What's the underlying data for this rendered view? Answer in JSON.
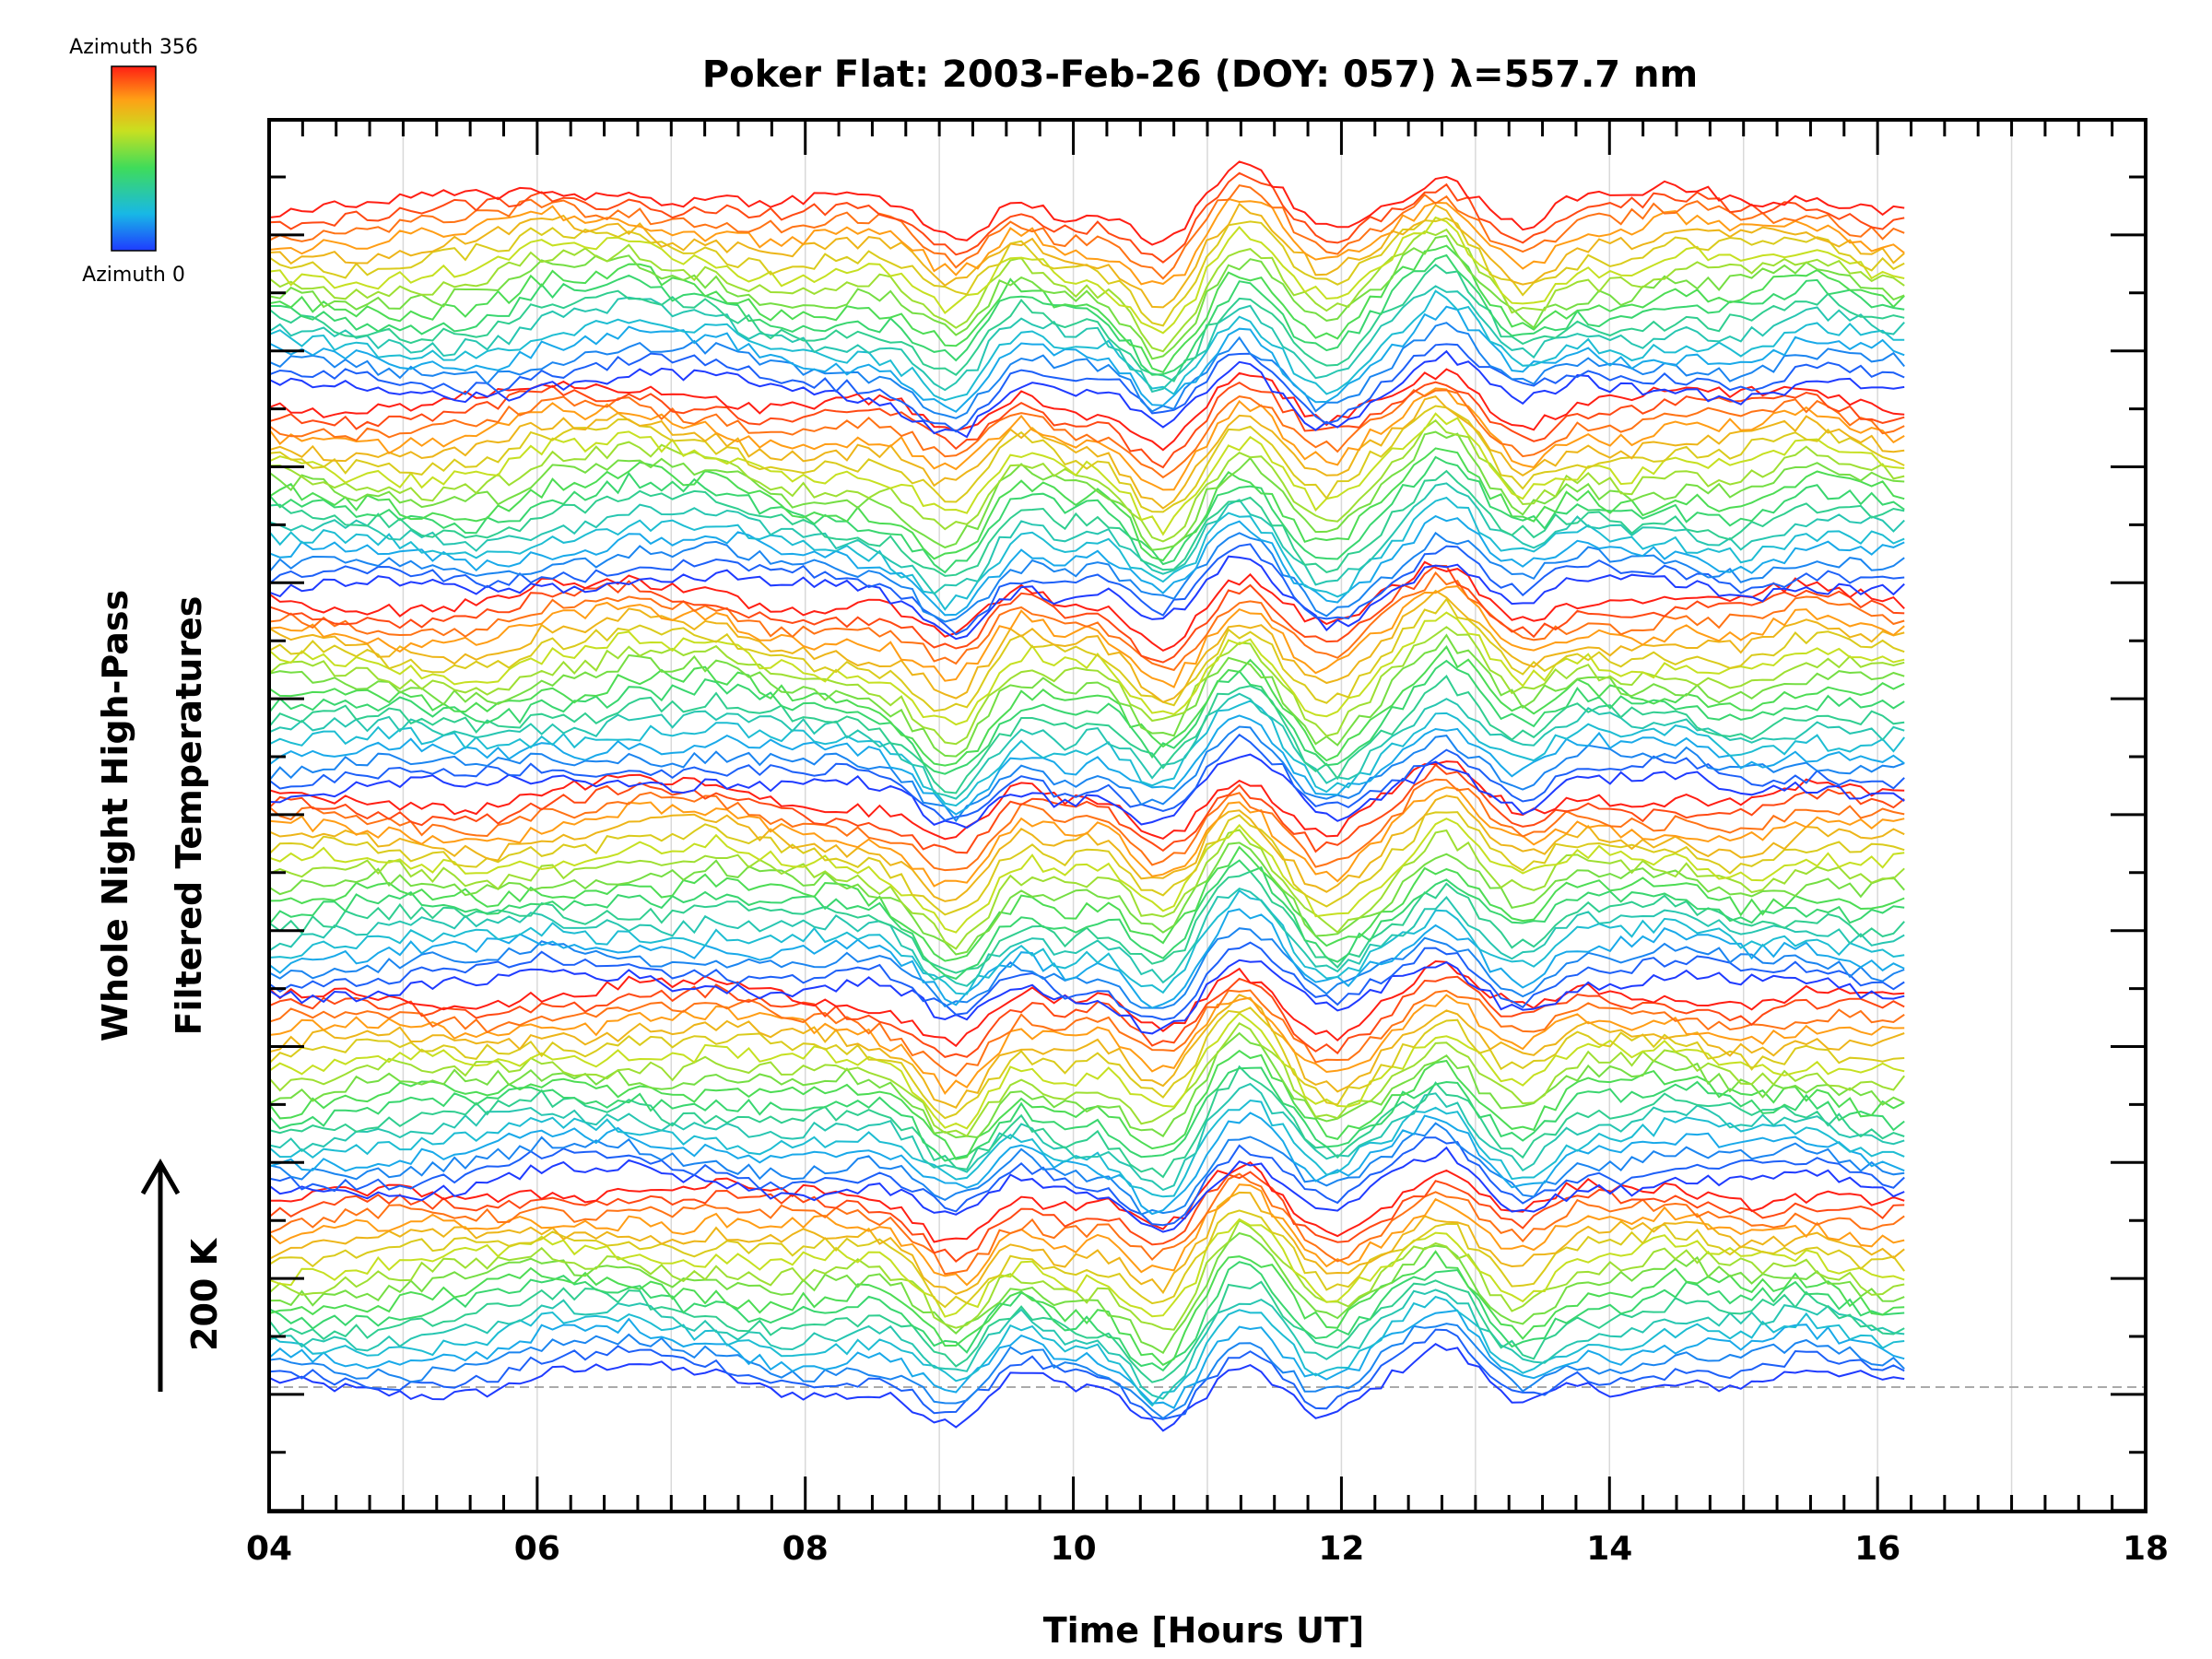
{
  "chart_data": {
    "type": "line",
    "title": "Poker Flat: 2003-Feb-26 (DOY: 057) λ=557.7 nm",
    "xlabel": "Time [Hours UT]",
    "ylabel_line1": "Whole Night High-Pass",
    "ylabel_line2": "Filtered Temperatures",
    "xlim": [
      4,
      18
    ],
    "x_data_range": [
      4,
      16.2
    ],
    "x_ticks": [
      "04",
      "06",
      "08",
      "10",
      "12",
      "14",
      "16",
      "18"
    ],
    "x_tick_values": [
      4,
      6,
      8,
      10,
      12,
      14,
      16,
      18
    ],
    "grid": "vertical lines every hour",
    "scale_bar_label": "200 K",
    "colorbar": {
      "top_label": "Azimuth 356",
      "bottom_label": "Azimuth 0",
      "colormap": "rainbow (blue at azimuth 0 to red at azimuth 356)",
      "placement": "top-left"
    },
    "series_count": 108,
    "azimuth_cycles": 6,
    "series_per_cycle": 18,
    "common_features": [
      {
        "x": 6.1,
        "amplitude": 0.35
      },
      {
        "x": 6.7,
        "amplitude": 0.45
      },
      {
        "x": 7.3,
        "amplitude": 0.3
      },
      {
        "x": 9.0,
        "amplitude": -0.5
      },
      {
        "x": 9.2,
        "amplitude": -0.7
      },
      {
        "x": 9.6,
        "amplitude": 0.4
      },
      {
        "x": 10.0,
        "amplitude": -0.6
      },
      {
        "x": 10.15,
        "amplitude": 0.5
      },
      {
        "x": 10.5,
        "amplitude": -0.4
      },
      {
        "x": 10.7,
        "amplitude": -0.8
      },
      {
        "x": 11.25,
        "amplitude": 0.85
      },
      {
        "x": 11.9,
        "amplitude": -0.8
      },
      {
        "x": 12.75,
        "amplitude": 0.9
      },
      {
        "x": 13.4,
        "amplitude": -0.55
      },
      {
        "x": 13.7,
        "amplitude": 0.3
      },
      {
        "x": 14.5,
        "amplitude": 0.25
      },
      {
        "x": 15.5,
        "amplitude": 0.3
      }
    ],
    "baseline_dashed": true
  }
}
